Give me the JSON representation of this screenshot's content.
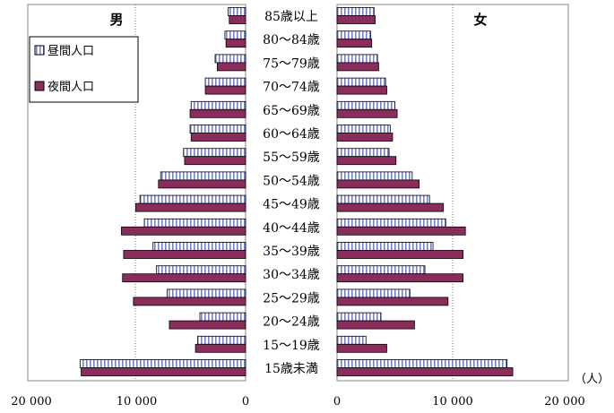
{
  "chart_data": {
    "type": "bar",
    "orientation": "horizontal-pyramid",
    "unit": "（人）",
    "left_panel_label": "男",
    "right_panel_label": "女",
    "left_ticks": [
      "20 000",
      "10 000",
      "0"
    ],
    "right_ticks": [
      "0",
      "10 000",
      "20 000"
    ],
    "xlim": [
      0,
      20000
    ],
    "legend_position": "top-left",
    "gridlines": "vertical at 10 000",
    "categories": [
      "85歳以上",
      "80～84歳",
      "75～79歳",
      "70～74歳",
      "65～69歳",
      "60～64歳",
      "55～59歳",
      "50～54歳",
      "45～49歳",
      "40～44歳",
      "35～39歳",
      "30～34歳",
      "25～29歳",
      "20～24歳",
      "15～19歳",
      "15歳未満"
    ],
    "series": [
      {
        "name": "昼間人口",
        "pattern": "white with blue vertical stripes",
        "color": "#7a82c4",
        "male": [
          1600,
          1900,
          2800,
          3700,
          5000,
          5100,
          5700,
          7800,
          9700,
          9300,
          8500,
          8200,
          7200,
          4200,
          4400,
          15200
        ],
        "female": [
          3200,
          2900,
          3500,
          4200,
          5000,
          4600,
          4500,
          6500,
          8000,
          9400,
          8300,
          7600,
          6300,
          3800,
          2500,
          14700
        ]
      },
      {
        "name": "夜間人口",
        "pattern": "solid",
        "color": "#8b2d5a",
        "male": [
          1500,
          1800,
          2600,
          3700,
          5100,
          5000,
          5600,
          8000,
          10100,
          11400,
          11200,
          11300,
          10300,
          7000,
          4600,
          15100
        ],
        "female": [
          3300,
          3000,
          3600,
          4300,
          5200,
          4800,
          5100,
          7100,
          9200,
          11100,
          10900,
          10900,
          9600,
          6700,
          4300,
          15200
        ]
      }
    ]
  }
}
